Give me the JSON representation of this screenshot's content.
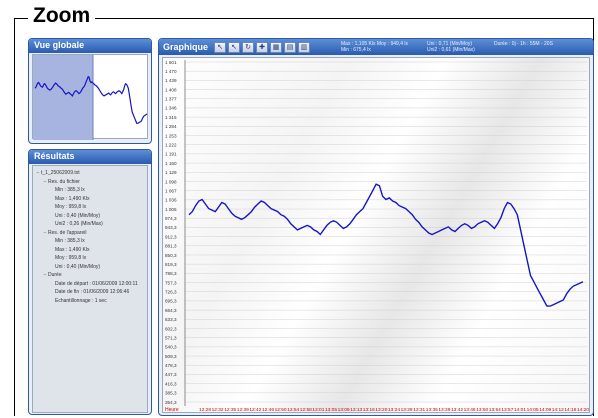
{
  "frame": {
    "title": "Zoom"
  },
  "vue_globale": {
    "title": "Vue globale"
  },
  "resultats": {
    "title": "Résultats",
    "tree": [
      {
        "indent": 0,
        "toggle": "−",
        "text": "t_1_25062009.txt"
      },
      {
        "indent": 1,
        "toggle": "−",
        "text": "Res. du fichier"
      },
      {
        "indent": 2,
        "toggle": "",
        "text": "Min : 385,3 lx"
      },
      {
        "indent": 2,
        "toggle": "",
        "text": "Max : 1,490 Klx"
      },
      {
        "indent": 2,
        "toggle": "",
        "text": "Moy : 959,8 lx"
      },
      {
        "indent": 2,
        "toggle": "",
        "text": "Uni : 0,40 (Min/Moy)"
      },
      {
        "indent": 2,
        "toggle": "",
        "text": "Uni2 : 0,26 (Min/Max)"
      },
      {
        "indent": 1,
        "toggle": "−",
        "text": "Res. de l'appareil"
      },
      {
        "indent": 2,
        "toggle": "",
        "text": "Min : 385,3 lx"
      },
      {
        "indent": 2,
        "toggle": "",
        "text": "Max : 1,490 Klx"
      },
      {
        "indent": 2,
        "toggle": "",
        "text": "Moy : 959,8 lx"
      },
      {
        "indent": 2,
        "toggle": "",
        "text": "Uni : 0,40 (Min/Moy)"
      },
      {
        "indent": 1,
        "toggle": "−",
        "text": "Durée"
      },
      {
        "indent": 2,
        "toggle": "",
        "text": "Date de départ : 01/06/2009 12:00:11"
      },
      {
        "indent": 2,
        "toggle": "",
        "text": "Date de fin : 01/06/2009 12:06:46"
      },
      {
        "indent": 2,
        "toggle": "",
        "text": "Echantillonnage : 1 sec"
      }
    ]
  },
  "graphique": {
    "title": "Graphique",
    "toolbar": [
      {
        "name": "zoom-tool-button",
        "glyph": "↖"
      },
      {
        "name": "zoom-in-button",
        "glyph": "↖"
      },
      {
        "name": "refresh-button",
        "glyph": "↻"
      },
      {
        "name": "pointer-button",
        "glyph": "✚"
      },
      {
        "name": "chart-type-button",
        "glyph": "▦"
      },
      {
        "name": "export-button",
        "glyph": "▤"
      },
      {
        "name": "book-button",
        "glyph": "▥"
      }
    ],
    "stats_line1": "Max : 1,105 Klx   Moy : 949,4 lx",
    "stats_line2": "Min : 675,4 lx",
    "stats_line3": "Uni : 0,71 (Min/Moy)",
    "stats_line4": "Uni2 : 0,61 (Min/Max)",
    "stats_line5": "Durée : 0j - 1h : 55M - 20S",
    "heure_label": "Heure"
  },
  "chart_data": {
    "type": "line",
    "color": "#1414c8",
    "ylim": [
      385.3,
      1501.1
    ],
    "y_ticks": [
      "1 501",
      "1 470",
      "1 439",
      "1 408",
      "1 377",
      "1 346",
      "1 315",
      "1 284",
      "1 253",
      "1 222",
      "1 191",
      "1 160",
      "1 129",
      "1 098",
      "1 067",
      "1 036",
      "1 005",
      "974,3",
      "943,3",
      "912,3",
      "881,3",
      "850,3",
      "819,3",
      "788,3",
      "757,3",
      "726,3",
      "695,3",
      "664,3",
      "633,3",
      "602,3",
      "571,3",
      "540,3",
      "509,3",
      "478,3",
      "447,3",
      "416,3",
      "385,3",
      "354,3"
    ],
    "x_ticks": [
      "12:28",
      "12:32",
      "12:35",
      "12:39",
      "12:42",
      "12:46",
      "12:50",
      "12:54",
      "12:58",
      "13:01",
      "13:05",
      "13:09",
      "13:13",
      "13:16",
      "13:20",
      "13:24",
      "13:28",
      "13:31",
      "13:35",
      "13:39",
      "13:42",
      "13:46",
      "13:50",
      "13:54",
      "13:57",
      "14:01",
      "14:05",
      "14:09",
      "14:12",
      "14:16",
      "14:20"
    ],
    "x": [
      0,
      1,
      2,
      3,
      4,
      5,
      6,
      7,
      8,
      9,
      10,
      11,
      12,
      13,
      14,
      15,
      16,
      17,
      18,
      19,
      20,
      21,
      22,
      23,
      24,
      25,
      26,
      27,
      28,
      29,
      30,
      31,
      32,
      33,
      34,
      35,
      36,
      37,
      38,
      39,
      40,
      41,
      42,
      43,
      44,
      45,
      46,
      47,
      48,
      49,
      50,
      51,
      52,
      53,
      54,
      55,
      56,
      57,
      58,
      59,
      60,
      61,
      62,
      63,
      64,
      65,
      66,
      67,
      68,
      69,
      70,
      71,
      72,
      73,
      74,
      75,
      76,
      77,
      78,
      79,
      80,
      81,
      82,
      83,
      84,
      85,
      86,
      87,
      88,
      89,
      90,
      91,
      92,
      93,
      94,
      95,
      96,
      97,
      98,
      99,
      100,
      101,
      102,
      103,
      104,
      105,
      106,
      107,
      108,
      109,
      110,
      111,
      112,
      113,
      114,
      115,
      116,
      117,
      118,
      119,
      120
    ],
    "y": [
      1000,
      1010,
      1030,
      1045,
      1050,
      1035,
      1020,
      1015,
      1010,
      1025,
      1040,
      1035,
      1020,
      1005,
      995,
      990,
      985,
      990,
      1000,
      1010,
      1025,
      1035,
      1045,
      1040,
      1030,
      1020,
      1015,
      1010,
      1000,
      995,
      985,
      970,
      960,
      950,
      955,
      960,
      965,
      960,
      950,
      945,
      935,
      950,
      965,
      975,
      980,
      975,
      965,
      955,
      960,
      970,
      985,
      1000,
      1010,
      1020,
      1040,
      1060,
      1080,
      1100,
      1095,
      1060,
      1050,
      1055,
      1045,
      1040,
      1030,
      1025,
      1020,
      1010,
      1000,
      985,
      975,
      960,
      950,
      940,
      935,
      940,
      945,
      950,
      955,
      960,
      950,
      945,
      955,
      965,
      970,
      965,
      955,
      960,
      970,
      975,
      980,
      975,
      965,
      955,
      970,
      990,
      1020,
      1040,
      1035,
      1020,
      1000,
      950,
      900,
      850,
      800,
      780,
      760,
      740,
      720,
      700,
      700,
      705,
      710,
      715,
      720,
      740,
      755,
      765,
      770,
      775,
      780
    ]
  }
}
